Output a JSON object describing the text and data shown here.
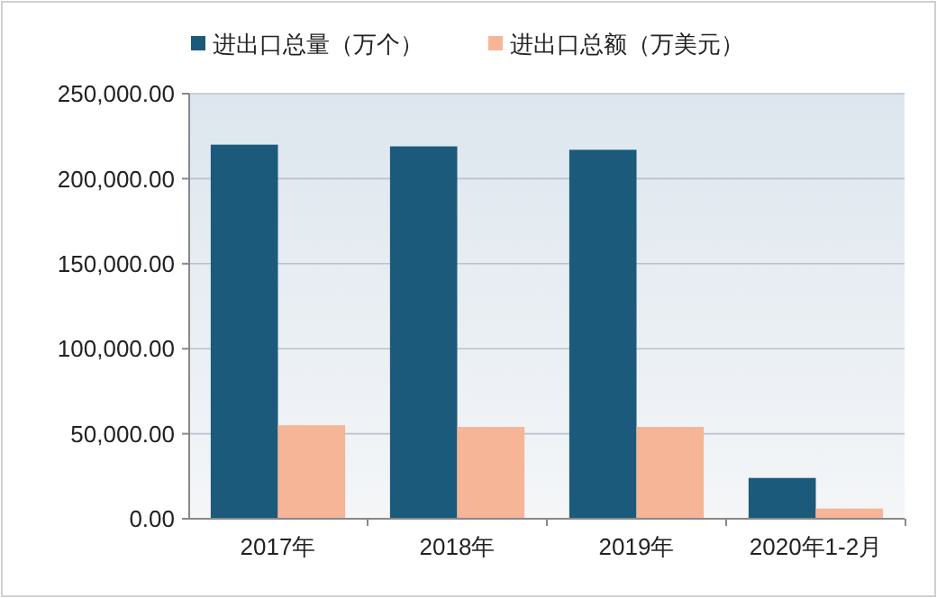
{
  "chart_data": {
    "type": "bar",
    "categories": [
      "2017年",
      "2018年",
      "2019年",
      "2020年1-2月"
    ],
    "series": [
      {
        "name": "进出口总量（万个）",
        "color": "#1b5a7a",
        "values": [
          220000,
          219000,
          217000,
          24000
        ]
      },
      {
        "name": "进出口总额（万美元）",
        "color": "#f5b596",
        "values": [
          55000,
          54000,
          54000,
          6000
        ]
      }
    ],
    "ylim": [
      0,
      250000
    ],
    "yticks": [
      {
        "value": 0,
        "label": "0.00"
      },
      {
        "value": 50000,
        "label": "50,000.00"
      },
      {
        "value": 100000,
        "label": "100,000.00"
      },
      {
        "value": 150000,
        "label": "150,000.00"
      },
      {
        "value": 200000,
        "label": "200,000.00"
      },
      {
        "value": 250000,
        "label": "250,000.00"
      }
    ],
    "grid": "y",
    "legend": "top"
  }
}
